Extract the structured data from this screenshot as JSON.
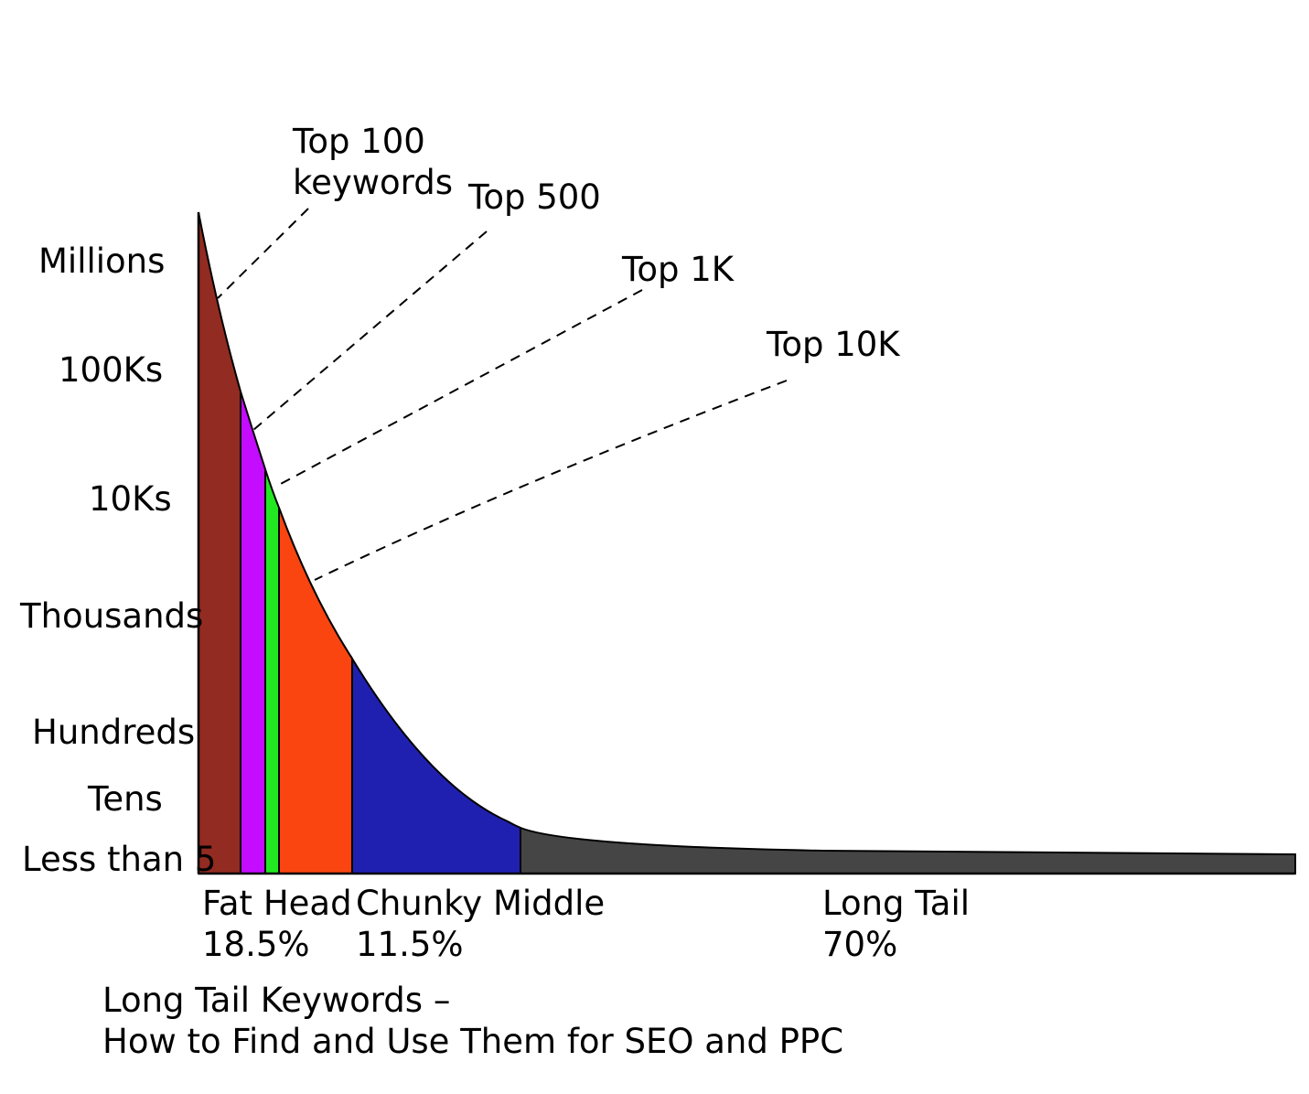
{
  "diagram": {
    "y_labels": [
      "Millions",
      "100Ks",
      "10Ks",
      "Thousands",
      "Hundreds",
      "Tens",
      "Less than 5"
    ],
    "callouts": [
      {
        "lines": [
          "Top 100",
          "keywords"
        ]
      },
      {
        "lines": [
          "Top 500"
        ]
      },
      {
        "lines": [
          "Top 1K"
        ]
      },
      {
        "lines": [
          "Top 10K"
        ]
      }
    ],
    "segments": [
      {
        "name": "Fat Head",
        "share": "18.5%"
      },
      {
        "name": "Chunky Middle",
        "share": "11.5%"
      },
      {
        "name": "Long Tail",
        "share": "70%"
      }
    ],
    "caption": {
      "line1": "Long Tail Keywords –",
      "line2": "How to Find and Use Them for SEO and PPC"
    },
    "colors": {
      "top100": "#922b21",
      "top500": "#c40cff",
      "top1k": "#22e822",
      "top10k": "#fa4510",
      "chunky_middle": "#2020b0",
      "long_tail": "#454545",
      "outline": "#000000"
    }
  }
}
